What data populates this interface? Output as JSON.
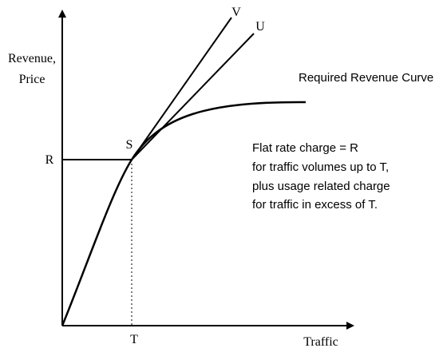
{
  "y_axis_label": [
    "Revenue,",
    "Price"
  ],
  "x_axis_label": "Traffic",
  "points": {
    "R": "R",
    "S": "S",
    "T": "T",
    "V": "V",
    "U": "U"
  },
  "curve_label": "Required Revenue Curve",
  "annotation": [
    "Flat rate charge = R",
    "for traffic volumes up to T,",
    "plus usage related charge",
    "for traffic in excess of T."
  ]
}
